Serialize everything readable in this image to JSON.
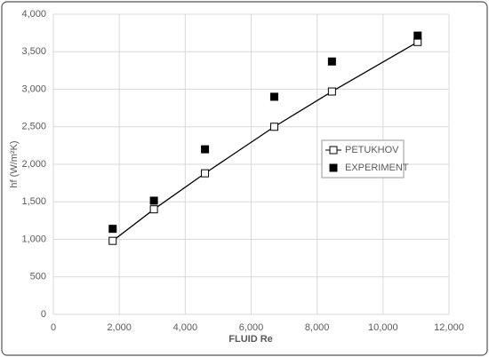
{
  "chart_data": {
    "type": "scatter",
    "x_label": "FLUID Re",
    "y_label": "hf (W/m²K)",
    "xlim": [
      0,
      12000
    ],
    "xticks": [
      0,
      {
        "value": 2000,
        "label": "2,000"
      },
      {
        "value": 4000,
        "label": "4,000"
      },
      {
        "value": 6000,
        "label": "6,000"
      },
      {
        "value": 8000,
        "label": "8,000"
      },
      {
        "value": 10000,
        "label": "10,000"
      },
      {
        "value": 12000,
        "label": "12,000"
      }
    ],
    "ylim": [
      0,
      4000
    ],
    "yticks": [
      0,
      500,
      {
        "value": 1000,
        "label": "1,000"
      },
      {
        "value": 1500,
        "label": "1,500"
      },
      {
        "value": 2000,
        "label": "2,000"
      },
      {
        "value": 2500,
        "label": "2,500"
      },
      {
        "value": 3000,
        "label": "3,000"
      },
      {
        "value": 3500,
        "label": "3,500"
      },
      {
        "value": 4000,
        "label": "4,000"
      }
    ],
    "grid": true,
    "legend": "center right",
    "series": [
      {
        "name": "PETUKHOV",
        "color": "#000000",
        "marker": "open-square",
        "line": true,
        "x": [
          1800,
          3050,
          4600,
          6700,
          8450,
          11050
        ],
        "values": [
          980,
          1400,
          1880,
          2500,
          2970,
          3630
        ]
      },
      {
        "name": "EXPERIMENT",
        "color": "#000000",
        "marker": "filled-square",
        "line": false,
        "x": [
          1800,
          3050,
          4600,
          6700,
          8450,
          11050
        ],
        "values": [
          1140,
          1515,
          2200,
          2900,
          3370,
          3715
        ]
      }
    ]
  }
}
